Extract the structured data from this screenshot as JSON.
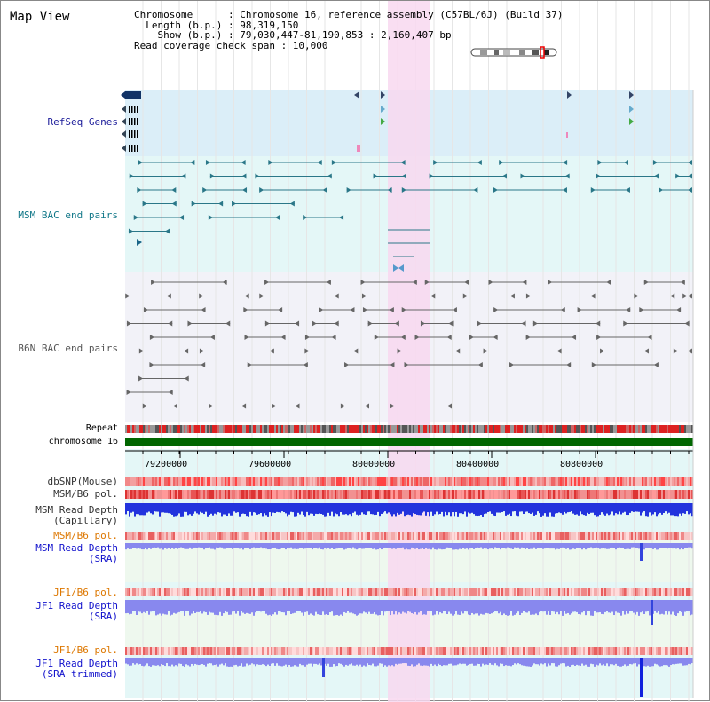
{
  "header": {
    "view_title": "Map View",
    "info_lines": [
      "Chromosome      : Chromosome 16, reference assembly (C57BL/6J) (Build 37)",
      "  Length (b.p.) : 98,319,150",
      "    Show (b.p.) : 79,030,447-81,190,853 : 2,160,407 bp",
      "Read coverage check span : 10,000"
    ]
  },
  "tracks": {
    "refseq": "RefSeq Genes",
    "msm_bac": "MSM BAC end pairs",
    "b6n_bac": "B6N BAC end pairs",
    "repeat": "Repeat",
    "chromosome": "chromosome 16",
    "dbsnp": "dbSNP(Mouse)",
    "msm_b6_pol_1": "MSM/B6 pol.",
    "msm_depth_cap_1": "MSM Read Depth",
    "msm_depth_cap_2": "(Capillary)",
    "msm_b6_pol_2": "MSM/B6 pol.",
    "msm_depth_sra_1": "MSM Read Depth",
    "msm_depth_sra_2": "(SRA)",
    "jf1_b6_pol_1": "JF1/B6 pol.",
    "jf1_depth_sra_1": "JF1 Read Depth",
    "jf1_depth_sra_2": "(SRA)",
    "jf1_b6_pol_2": "JF1/B6 pol.",
    "jf1_depth_trim_1": "JF1 Read Depth",
    "jf1_depth_trim_2": "(SRA trimmed)"
  },
  "axis": {
    "ticks": [
      "79200000",
      "79600000",
      "80000000",
      "80400000",
      "80800000"
    ]
  },
  "colors": {
    "highlight": "#f8d8f0",
    "refseq_bg": "#dbeef8",
    "msm_bg": "#e4f7f7",
    "b6n_bg": "#f2f2f8",
    "chromosome": "#006600",
    "depth_dark": "#2233dd",
    "depth_light": "#8888ee"
  }
}
